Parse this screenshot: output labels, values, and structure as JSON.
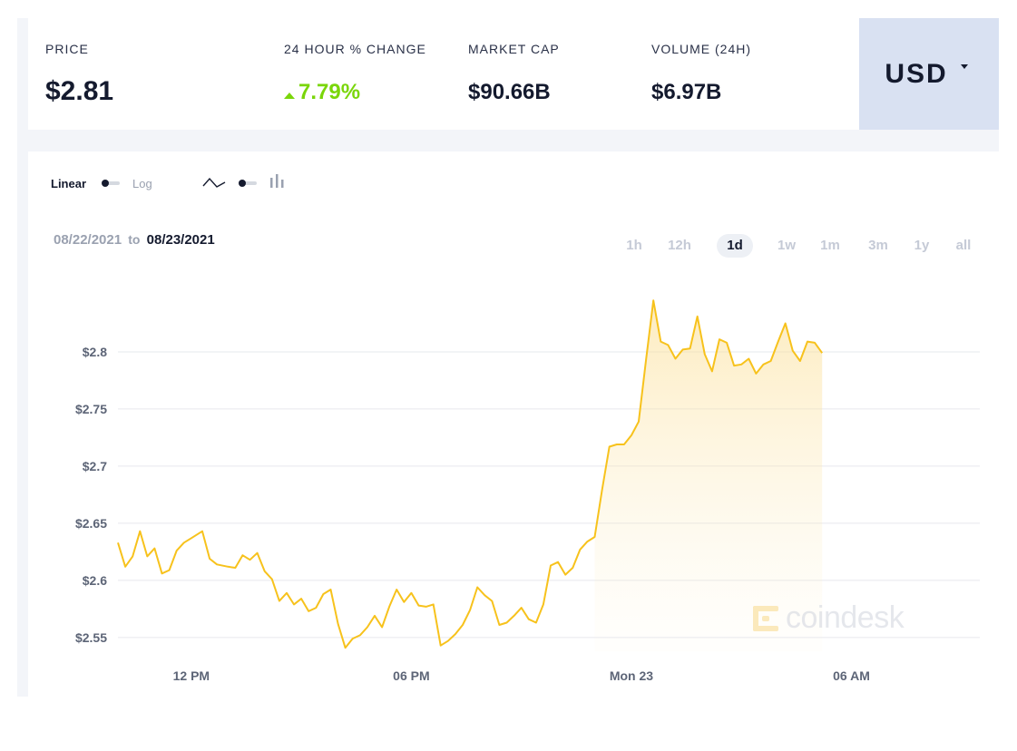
{
  "stats": {
    "price_label": "PRICE",
    "price_value": "$2.81",
    "change_label": "24 HOUR % CHANGE",
    "change_value": "7.79%",
    "market_cap_label": "MARKET CAP",
    "market_cap_value": "$90.66B",
    "volume_label": "VOLUME (24H)",
    "volume_value": "$6.97B"
  },
  "currency": {
    "label": "USD"
  },
  "controls": {
    "linear_label": "Linear",
    "log_label": "Log"
  },
  "date_range": {
    "from": "08/22/2021",
    "to_word": "to",
    "to": "08/23/2021"
  },
  "ranges": [
    "1h",
    "12h",
    "1d",
    "1w",
    "1m",
    "3m",
    "1y",
    "all"
  ],
  "active_range": "1d",
  "logo": {
    "text": "coindesk"
  },
  "colors": {
    "line": "#f7c21c",
    "accent_up": "#7ad60a",
    "currency_bg": "#d9e1f2"
  },
  "chart_data": {
    "type": "area",
    "y_ticks": [
      2.55,
      2.6,
      2.65,
      2.7,
      2.75,
      2.8
    ],
    "y_tick_labels": [
      "$2.55",
      "$2.6",
      "$2.65",
      "$2.7",
      "$2.75",
      "$2.8"
    ],
    "ylim": [
      2.538,
      2.846
    ],
    "x_range_hours": [
      10.0,
      33.5
    ],
    "x_ticks": [
      {
        "hours": 12,
        "label": "12 PM"
      },
      {
        "hours": 18,
        "label": "06 PM"
      },
      {
        "hours": 24,
        "label": "Mon 23"
      },
      {
        "hours": 30,
        "label": "06 AM"
      }
    ],
    "series": [
      {
        "points": [
          [
            10.0,
            2.633
          ],
          [
            10.2,
            2.612
          ],
          [
            10.4,
            2.621
          ],
          [
            10.6,
            2.643
          ],
          [
            10.8,
            2.621
          ],
          [
            11.0,
            2.628
          ],
          [
            11.2,
            2.606
          ],
          [
            11.4,
            2.609
          ],
          [
            11.6,
            2.626
          ],
          [
            11.8,
            2.633
          ],
          [
            12.0,
            2.637
          ],
          [
            12.3,
            2.643
          ],
          [
            12.5,
            2.619
          ],
          [
            12.7,
            2.614
          ],
          [
            13.0,
            2.612
          ],
          [
            13.2,
            2.611
          ],
          [
            13.4,
            2.622
          ],
          [
            13.6,
            2.618
          ],
          [
            13.8,
            2.624
          ],
          [
            14.0,
            2.608
          ],
          [
            14.2,
            2.601
          ],
          [
            14.4,
            2.582
          ],
          [
            14.6,
            2.589
          ],
          [
            14.8,
            2.579
          ],
          [
            15.0,
            2.584
          ],
          [
            15.2,
            2.573
          ],
          [
            15.4,
            2.576
          ],
          [
            15.6,
            2.588
          ],
          [
            15.8,
            2.592
          ],
          [
            16.0,
            2.562
          ],
          [
            16.2,
            2.541
          ],
          [
            16.4,
            2.549
          ],
          [
            16.6,
            2.552
          ],
          [
            16.8,
            2.559
          ],
          [
            17.0,
            2.569
          ],
          [
            17.2,
            2.559
          ],
          [
            17.4,
            2.577
          ],
          [
            17.6,
            2.592
          ],
          [
            17.8,
            2.581
          ],
          [
            18.0,
            2.589
          ],
          [
            18.2,
            2.578
          ],
          [
            18.4,
            2.577
          ],
          [
            18.6,
            2.579
          ],
          [
            18.8,
            2.543
          ],
          [
            19.0,
            2.547
          ],
          [
            19.2,
            2.553
          ],
          [
            19.4,
            2.561
          ],
          [
            19.6,
            2.574
          ],
          [
            19.8,
            2.594
          ],
          [
            20.0,
            2.587
          ],
          [
            20.2,
            2.582
          ],
          [
            20.4,
            2.561
          ],
          [
            20.6,
            2.563
          ],
          [
            20.8,
            2.569
          ],
          [
            21.0,
            2.576
          ],
          [
            21.2,
            2.566
          ],
          [
            21.4,
            2.563
          ],
          [
            21.6,
            2.579
          ],
          [
            21.8,
            2.613
          ],
          [
            22.0,
            2.616
          ],
          [
            22.2,
            2.605
          ],
          [
            22.4,
            2.611
          ],
          [
            22.6,
            2.627
          ],
          [
            22.8,
            2.634
          ],
          [
            23.0,
            2.638
          ],
          [
            23.2,
            2.679
          ],
          [
            23.4,
            2.717
          ],
          [
            23.6,
            2.719
          ],
          [
            23.8,
            2.719
          ],
          [
            24.0,
            2.727
          ],
          [
            24.2,
            2.739
          ],
          [
            24.4,
            2.793
          ],
          [
            24.6,
            2.845
          ],
          [
            24.8,
            2.809
          ],
          [
            25.0,
            2.806
          ],
          [
            25.2,
            2.794
          ],
          [
            25.4,
            2.802
          ],
          [
            25.6,
            2.803
          ],
          [
            25.8,
            2.831
          ],
          [
            26.0,
            2.798
          ],
          [
            26.2,
            2.783
          ],
          [
            26.4,
            2.811
          ],
          [
            26.6,
            2.808
          ],
          [
            26.8,
            2.788
          ],
          [
            27.0,
            2.789
          ],
          [
            27.2,
            2.794
          ],
          [
            27.4,
            2.781
          ],
          [
            27.6,
            2.789
          ],
          [
            27.8,
            2.792
          ],
          [
            28.0,
            2.809
          ],
          [
            28.2,
            2.825
          ],
          [
            28.4,
            2.801
          ],
          [
            28.6,
            2.792
          ],
          [
            28.8,
            2.809
          ],
          [
            29.0,
            2.808
          ],
          [
            29.2,
            2.799
          ]
        ]
      }
    ]
  }
}
